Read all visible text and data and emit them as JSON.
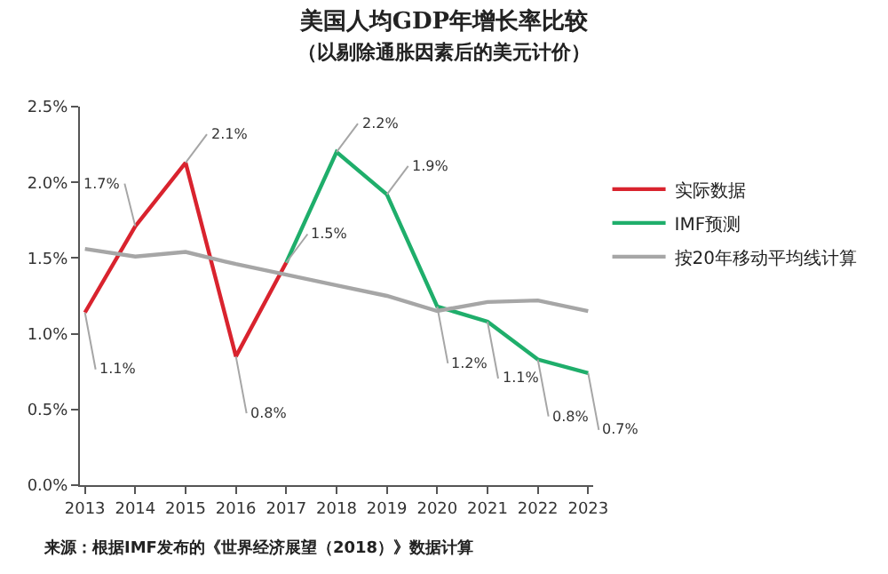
{
  "chart_data": {
    "type": "line",
    "title": "美国人均GDP年增长率比较",
    "subtitle": "（以剔除通胀因素后的美元计价）",
    "categories": [
      "2013",
      "2014",
      "2015",
      "2016",
      "2017",
      "2018",
      "2019",
      "2020",
      "2021",
      "2022",
      "2023"
    ],
    "series": [
      {
        "name": "实际数据",
        "color": "#d9232e",
        "values": [
          1.14,
          1.71,
          2.13,
          0.85,
          1.47,
          null,
          null,
          null,
          null,
          null,
          null
        ],
        "value_labels": [
          "1.1%",
          "1.7%",
          "2.1%",
          "0.8%",
          "1.5%",
          null,
          null,
          null,
          null,
          null,
          null
        ]
      },
      {
        "name": "IMF预测",
        "color": "#1fae6b",
        "values": [
          null,
          null,
          null,
          null,
          1.47,
          2.2,
          1.92,
          1.18,
          1.08,
          0.83,
          0.74
        ],
        "value_labels": [
          null,
          null,
          null,
          null,
          null,
          "2.2%",
          "1.9%",
          "1.2%",
          "1.1%",
          "0.8%",
          "0.7%"
        ]
      },
      {
        "name": "按20年移动平均线计算",
        "color": "#a6a6a6",
        "values": [
          1.56,
          1.51,
          1.54,
          1.46,
          1.39,
          1.32,
          1.25,
          1.15,
          1.21,
          1.22,
          1.15
        ]
      }
    ],
    "ylim": [
      0,
      2.5
    ],
    "yticks": [
      {
        "value": 0,
        "label": "0.0%"
      },
      {
        "value": 0.5,
        "label": "0.5%"
      },
      {
        "value": 1.0,
        "label": "1.0%"
      },
      {
        "value": 1.5,
        "label": "1.5%"
      },
      {
        "value": 2.0,
        "label": "2.0%"
      },
      {
        "value": 2.5,
        "label": "2.5%"
      }
    ],
    "legend": "right",
    "marker": "none",
    "line_style": "solid",
    "annotations": [
      "来源：根据IMF发布的《世界经济展望（2018）》数据计算"
    ]
  }
}
